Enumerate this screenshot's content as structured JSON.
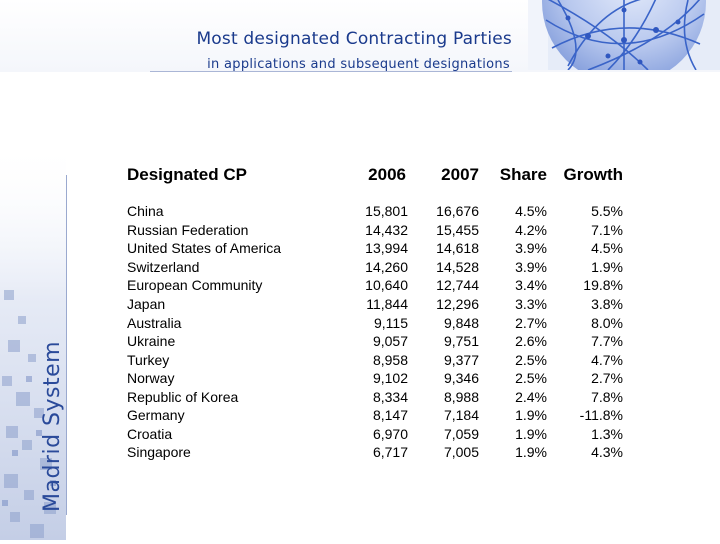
{
  "header": {
    "title": "Most designated Contracting Parties",
    "subtitle": "in applications and subsequent designations"
  },
  "sidebar": {
    "label": "Madrid System"
  },
  "table": {
    "columns": [
      "Designated CP",
      "2006",
      "2007",
      "Share",
      "Growth"
    ],
    "rows": [
      [
        "China",
        "15,801",
        "16,676",
        "4.5%",
        "5.5%"
      ],
      [
        "Russian Federation",
        "14,432",
        "15,455",
        "4.2%",
        "7.1%"
      ],
      [
        "United States of America",
        "13,994",
        "14,618",
        "3.9%",
        "4.5%"
      ],
      [
        "Switzerland",
        "14,260",
        "14,528",
        "3.9%",
        "1.9%"
      ],
      [
        "European Community",
        "10,640",
        "12,744",
        "3.4%",
        "19.8%"
      ],
      [
        "Japan",
        "11,844",
        "12,296",
        "3.3%",
        "3.8%"
      ],
      [
        "Australia",
        "9,115",
        "9,848",
        "2.7%",
        "8.0%"
      ],
      [
        "Ukraine",
        "9,057",
        "9,751",
        "2.6%",
        "7.7%"
      ],
      [
        "Turkey",
        "8,958",
        "9,377",
        "2.5%",
        "4.7%"
      ],
      [
        "Norway",
        "9,102",
        "9,346",
        "2.5%",
        "2.7%"
      ],
      [
        "Republic of Korea",
        "8,334",
        "8,988",
        "2.4%",
        "7.8%"
      ],
      [
        "Germany",
        "8,147",
        "7,184",
        "1.9%",
        "-11.8%"
      ],
      [
        "Croatia",
        "6,970",
        "7,059",
        "1.9%",
        "1.3%"
      ],
      [
        "Singapore",
        "6,717",
        "7,005",
        "1.9%",
        "4.3%"
      ]
    ]
  },
  "colors": {
    "title_blue": "#1a3a8c",
    "side_blue": "#2a4a9a",
    "globe_blue": "#3a64c8"
  }
}
